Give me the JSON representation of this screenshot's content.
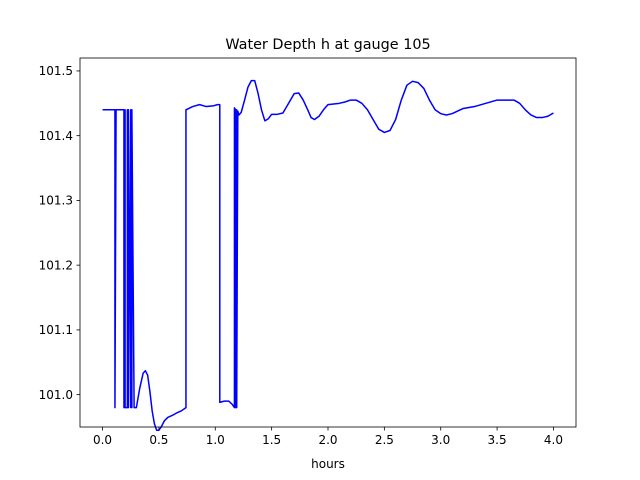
{
  "chart_data": {
    "type": "line",
    "title": "Water Depth h at gauge 105",
    "xlabel": "hours",
    "ylabel": "",
    "xlim": [
      -0.2,
      4.2
    ],
    "ylim": [
      100.95,
      101.52
    ],
    "xticks": [
      0.0,
      0.5,
      1.0,
      1.5,
      2.0,
      2.5,
      3.0,
      3.5,
      4.0
    ],
    "xtick_labels": [
      "0.0",
      "0.5",
      "1.0",
      "1.5",
      "2.0",
      "2.5",
      "3.0",
      "3.5",
      "4.0"
    ],
    "yticks": [
      101.0,
      101.1,
      101.2,
      101.3,
      101.4,
      101.5
    ],
    "ytick_labels": [
      "101.0",
      "101.1",
      "101.2",
      "101.3",
      "101.4",
      "101.5"
    ],
    "grid": false,
    "legend": "none",
    "series": [
      {
        "color": "#0000ff",
        "x": [
          0.0,
          0.1,
          0.11,
          0.11,
          0.12,
          0.19,
          0.19,
          0.2,
          0.2,
          0.22,
          0.22,
          0.23,
          0.23,
          0.25,
          0.25,
          0.26,
          0.26,
          0.28,
          0.28,
          0.3,
          0.33,
          0.36,
          0.38,
          0.4,
          0.42,
          0.44,
          0.46,
          0.48,
          0.5,
          0.52,
          0.55,
          0.58,
          0.62,
          0.66,
          0.7,
          0.74,
          0.74,
          0.8,
          0.86,
          0.92,
          0.98,
          1.02,
          1.04,
          1.04,
          1.08,
          1.12,
          1.15,
          1.17,
          1.17,
          1.18,
          1.18,
          1.19,
          1.19,
          1.2,
          1.21,
          1.23,
          1.26,
          1.29,
          1.32,
          1.35,
          1.38,
          1.41,
          1.44,
          1.47,
          1.5,
          1.55,
          1.6,
          1.65,
          1.7,
          1.74,
          1.78,
          1.82,
          1.85,
          1.88,
          1.92,
          1.96,
          2.0,
          2.05,
          2.1,
          2.15,
          2.2,
          2.25,
          2.3,
          2.35,
          2.4,
          2.45,
          2.5,
          2.55,
          2.6,
          2.65,
          2.7,
          2.75,
          2.8,
          2.85,
          2.9,
          2.95,
          3.0,
          3.05,
          3.1,
          3.15,
          3.2,
          3.3,
          3.4,
          3.5,
          3.6,
          3.65,
          3.7,
          3.75,
          3.8,
          3.85,
          3.9,
          3.95,
          4.0
        ],
        "y": [
          101.44,
          101.44,
          101.44,
          100.98,
          101.44,
          101.44,
          100.98,
          101.44,
          100.98,
          100.98,
          101.44,
          100.98,
          101.44,
          100.98,
          101.44,
          100.98,
          101.44,
          100.98,
          100.98,
          100.98,
          101.01,
          101.033,
          101.037,
          101.03,
          101.005,
          100.975,
          100.955,
          100.945,
          100.945,
          100.95,
          100.96,
          100.965,
          100.968,
          100.972,
          100.975,
          100.98,
          101.44,
          101.445,
          101.448,
          101.445,
          101.446,
          101.448,
          101.448,
          100.988,
          100.99,
          100.99,
          100.985,
          100.98,
          101.443,
          101.44,
          100.98,
          101.44,
          100.98,
          101.438,
          101.432,
          101.436,
          101.455,
          101.475,
          101.485,
          101.485,
          101.465,
          101.44,
          101.423,
          101.426,
          101.433,
          101.433,
          101.435,
          101.45,
          101.465,
          101.466,
          101.455,
          101.44,
          101.428,
          101.425,
          101.43,
          101.44,
          101.448,
          101.449,
          101.45,
          101.452,
          101.455,
          101.455,
          101.45,
          101.44,
          101.425,
          101.41,
          101.405,
          101.408,
          101.425,
          101.455,
          101.478,
          101.484,
          101.482,
          101.473,
          101.455,
          101.44,
          101.434,
          101.432,
          101.434,
          101.438,
          101.442,
          101.445,
          101.45,
          101.455,
          101.455,
          101.455,
          101.45,
          101.44,
          101.432,
          101.428,
          101.428,
          101.43,
          101.435
        ]
      }
    ]
  }
}
